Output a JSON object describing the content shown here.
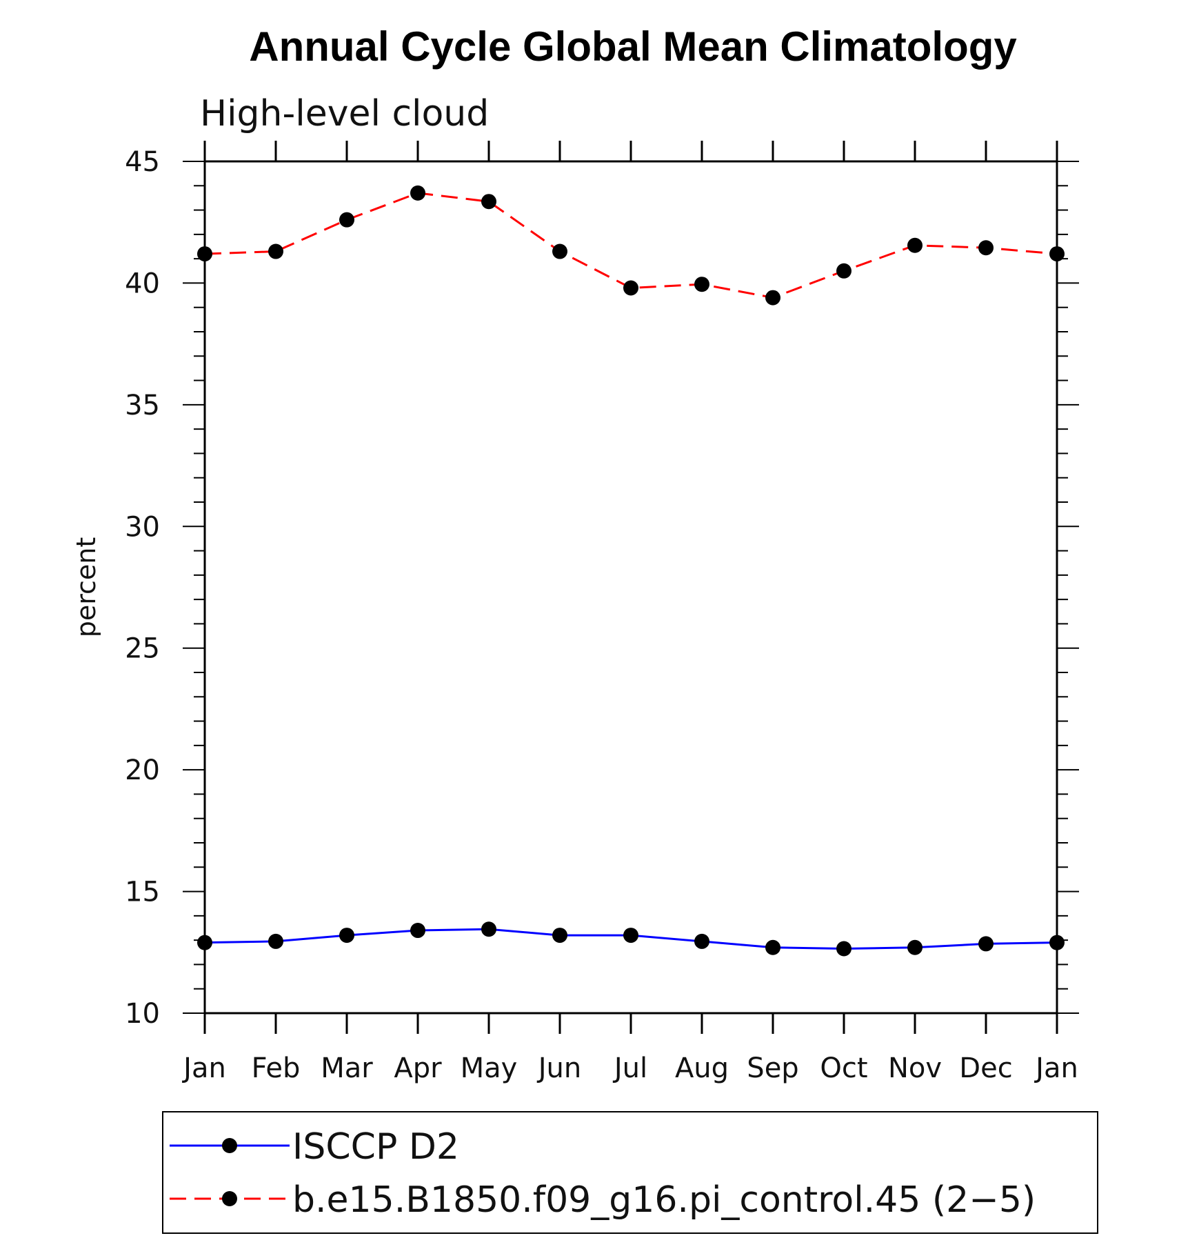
{
  "chart_data": {
    "type": "line",
    "title": "Annual Cycle Global Mean Climatology",
    "subtitle": "High-level cloud",
    "xlabel": "",
    "ylabel": "percent",
    "categories": [
      "Jan",
      "Feb",
      "Mar",
      "Apr",
      "May",
      "Jun",
      "Jul",
      "Aug",
      "Sep",
      "Oct",
      "Nov",
      "Dec",
      "Jan"
    ],
    "ylim": [
      10,
      45
    ],
    "yticks": [
      10,
      15,
      20,
      25,
      30,
      35,
      40,
      45
    ],
    "ytick_labels": [
      "10",
      "15",
      "20",
      "25",
      "30",
      "35",
      "40",
      "45"
    ],
    "grid": false,
    "legend_position": "bottom",
    "series": [
      {
        "name": "ISCCP D2",
        "color": "#0000ff",
        "line_style": "solid",
        "marker": "filled-circle",
        "values": [
          12.9,
          12.95,
          13.2,
          13.4,
          13.45,
          13.2,
          13.2,
          12.95,
          12.7,
          12.65,
          12.7,
          12.85,
          12.9
        ]
      },
      {
        "name": "b.e15.B1850.f09_g16.pi_control.45 (2−5)",
        "color": "#ff0000",
        "line_style": "dashed",
        "marker": "filled-circle",
        "values": [
          41.2,
          41.3,
          42.6,
          43.7,
          43.35,
          41.3,
          39.8,
          39.95,
          39.4,
          40.5,
          41.55,
          41.45,
          41.2
        ]
      }
    ]
  }
}
